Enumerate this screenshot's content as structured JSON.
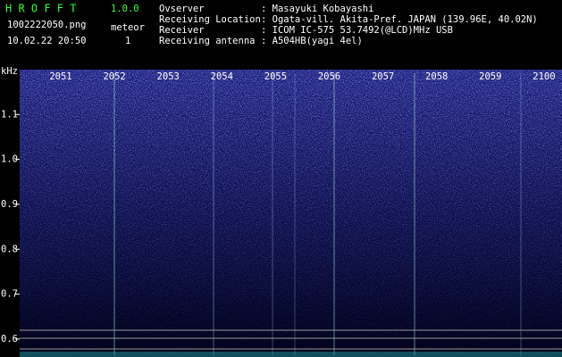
{
  "app": {
    "name": "H R O F F T",
    "version": "1.0.0",
    "file": "1002222050.png",
    "datetime": "10.02.22 20:50",
    "meteor_label": "meteor",
    "meteor_count": 1
  },
  "info": [
    {
      "label": "Ovserver",
      "value": ": Masayuki Kobayashi"
    },
    {
      "label": "Receiving Location",
      "value": ": Ogata-vill. Akita-Pref. JAPAN (139.96E, 40.02N)"
    },
    {
      "label": "Receiver",
      "value": ": ICOM IC-575 53.7492(@LCD)MHz USB"
    },
    {
      "label": "Receiving antenna",
      "value": ": A504HB(yagi 4el)"
    }
  ],
  "chart_data": {
    "type": "spectrogram",
    "y_label": "kHz",
    "ylim": [
      0.564,
      1.2
    ],
    "yticks": [
      0.6,
      0.7,
      0.8,
      0.9,
      {
        "value": 1.0,
        "label": "1.0"
      },
      1.1
    ],
    "time_labels": [
      "2051",
      "2052",
      "2053",
      "2054",
      "2055",
      "2056",
      "2057",
      "2058",
      "2059",
      "2100"
    ]
  }
}
